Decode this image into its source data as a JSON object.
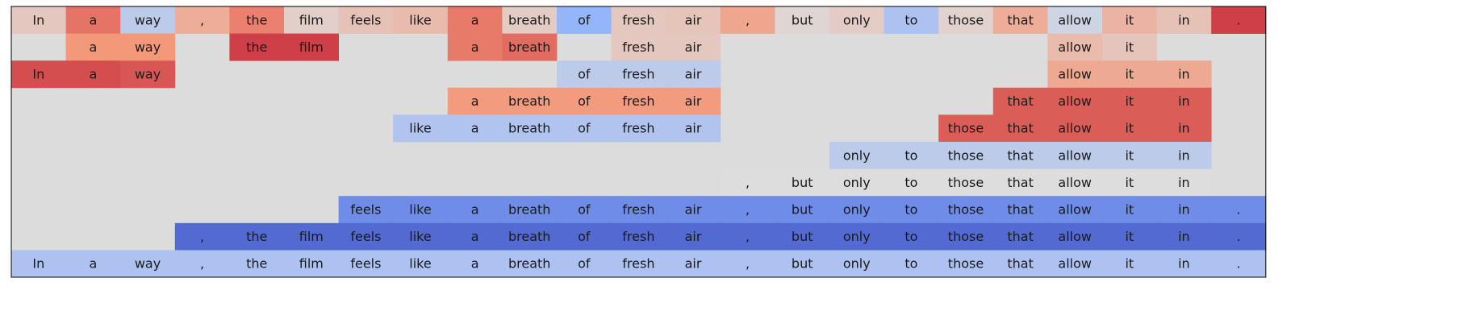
{
  "chart_data": {
    "type": "heatmap",
    "title": "",
    "xlabel": "",
    "ylabel": "",
    "grid": false,
    "tokens": [
      "In",
      "a",
      "way",
      ",",
      "the",
      "film",
      "feels",
      "like",
      "a",
      "breath",
      "of",
      "fresh",
      "air",
      ",",
      "but",
      "only",
      "to",
      "those",
      "that",
      "allow",
      "it",
      "in",
      "."
    ],
    "value_range": [
      -1,
      1
    ],
    "colormap": "coolwarm",
    "background_color": "#dcdcdc",
    "rows": [
      {
        "cells": [
          {
            "col": 0,
            "value": 0.15
          },
          {
            "col": 1,
            "value": 0.62
          },
          {
            "col": 2,
            "value": -0.2
          },
          {
            "col": 3,
            "value": 0.35
          },
          {
            "col": 4,
            "value": 0.58
          },
          {
            "col": 5,
            "value": 0.1
          },
          {
            "col": 6,
            "value": 0.2
          },
          {
            "col": 7,
            "value": 0.25
          },
          {
            "col": 8,
            "value": 0.6
          },
          {
            "col": 9,
            "value": 0.12
          },
          {
            "col": 10,
            "value": -0.45
          },
          {
            "col": 11,
            "value": 0.15
          },
          {
            "col": 12,
            "value": 0.18
          },
          {
            "col": 13,
            "value": 0.4
          },
          {
            "col": 14,
            "value": 0.05
          },
          {
            "col": 15,
            "value": 0.12
          },
          {
            "col": 16,
            "value": -0.3
          },
          {
            "col": 17,
            "value": 0.08
          },
          {
            "col": 18,
            "value": 0.35
          },
          {
            "col": 19,
            "value": -0.1
          },
          {
            "col": 20,
            "value": 0.3
          },
          {
            "col": 21,
            "value": 0.2
          },
          {
            "col": 22,
            "value": 0.8
          }
        ]
      },
      {
        "cells": [
          {
            "col": 1,
            "value": 0.5
          },
          {
            "col": 2,
            "value": 0.5
          },
          {
            "col": 4,
            "value": 0.8
          },
          {
            "col": 5,
            "value": 0.8
          },
          {
            "col": 8,
            "value": 0.6
          },
          {
            "col": 9,
            "value": 0.65
          },
          {
            "col": 11,
            "value": 0.15
          },
          {
            "col": 12,
            "value": 0.15
          },
          {
            "col": 19,
            "value": 0.25
          },
          {
            "col": 20,
            "value": 0.18
          }
        ]
      },
      {
        "cells": [
          {
            "col": 0,
            "value": 0.75
          },
          {
            "col": 1,
            "value": 0.75
          },
          {
            "col": 2,
            "value": 0.72
          },
          {
            "col": 10,
            "value": -0.2
          },
          {
            "col": 11,
            "value": -0.2
          },
          {
            "col": 12,
            "value": -0.2
          },
          {
            "col": 19,
            "value": 0.38
          },
          {
            "col": 20,
            "value": 0.38
          },
          {
            "col": 21,
            "value": 0.38
          }
        ]
      },
      {
        "cells": [
          {
            "col": 8,
            "value": 0.48
          },
          {
            "col": 9,
            "value": 0.48
          },
          {
            "col": 10,
            "value": 0.48
          },
          {
            "col": 11,
            "value": 0.48
          },
          {
            "col": 12,
            "value": 0.48
          },
          {
            "col": 18,
            "value": 0.7
          },
          {
            "col": 19,
            "value": 0.7
          },
          {
            "col": 20,
            "value": 0.7
          },
          {
            "col": 21,
            "value": 0.7
          }
        ]
      },
      {
        "cells": [
          {
            "col": 7,
            "value": -0.28
          },
          {
            "col": 8,
            "value": -0.28
          },
          {
            "col": 9,
            "value": -0.28
          },
          {
            "col": 10,
            "value": -0.28
          },
          {
            "col": 11,
            "value": -0.28
          },
          {
            "col": 12,
            "value": -0.28
          },
          {
            "col": 17,
            "value": 0.7
          },
          {
            "col": 18,
            "value": 0.7
          },
          {
            "col": 19,
            "value": 0.7
          },
          {
            "col": 20,
            "value": 0.7
          },
          {
            "col": 21,
            "value": 0.7
          }
        ]
      },
      {
        "cells": [
          {
            "col": 15,
            "value": -0.2
          },
          {
            "col": 16,
            "value": -0.2
          },
          {
            "col": 17,
            "value": -0.2
          },
          {
            "col": 18,
            "value": -0.2
          },
          {
            "col": 19,
            "value": -0.2
          },
          {
            "col": 20,
            "value": -0.2
          },
          {
            "col": 21,
            "value": -0.2
          }
        ]
      },
      {
        "cells": [
          {
            "col": 13,
            "value": 0.0
          },
          {
            "col": 14,
            "value": 0.0
          },
          {
            "col": 15,
            "value": 0.0
          },
          {
            "col": 16,
            "value": 0.0
          },
          {
            "col": 17,
            "value": 0.0
          },
          {
            "col": 18,
            "value": 0.0
          },
          {
            "col": 19,
            "value": 0.0
          },
          {
            "col": 20,
            "value": 0.0
          },
          {
            "col": 21,
            "value": 0.0
          }
        ]
      },
      {
        "cells": [
          {
            "col": 6,
            "value": -0.68
          },
          {
            "col": 7,
            "value": -0.68
          },
          {
            "col": 8,
            "value": -0.68
          },
          {
            "col": 9,
            "value": -0.68
          },
          {
            "col": 10,
            "value": -0.68
          },
          {
            "col": 11,
            "value": -0.68
          },
          {
            "col": 12,
            "value": -0.68
          },
          {
            "col": 13,
            "value": -0.68
          },
          {
            "col": 14,
            "value": -0.68
          },
          {
            "col": 15,
            "value": -0.68
          },
          {
            "col": 16,
            "value": -0.68
          },
          {
            "col": 17,
            "value": -0.68
          },
          {
            "col": 18,
            "value": -0.68
          },
          {
            "col": 19,
            "value": -0.68
          },
          {
            "col": 20,
            "value": -0.68
          },
          {
            "col": 21,
            "value": -0.68
          },
          {
            "col": 22,
            "value": -0.68
          }
        ]
      },
      {
        "cells": [
          {
            "col": 3,
            "value": -0.85
          },
          {
            "col": 4,
            "value": -0.85
          },
          {
            "col": 5,
            "value": -0.85
          },
          {
            "col": 6,
            "value": -0.85
          },
          {
            "col": 7,
            "value": -0.85
          },
          {
            "col": 8,
            "value": -0.85
          },
          {
            "col": 9,
            "value": -0.85
          },
          {
            "col": 10,
            "value": -0.85
          },
          {
            "col": 11,
            "value": -0.85
          },
          {
            "col": 12,
            "value": -0.85
          },
          {
            "col": 13,
            "value": -0.85
          },
          {
            "col": 14,
            "value": -0.85
          },
          {
            "col": 15,
            "value": -0.85
          },
          {
            "col": 16,
            "value": -0.85
          },
          {
            "col": 17,
            "value": -0.85
          },
          {
            "col": 18,
            "value": -0.85
          },
          {
            "col": 19,
            "value": -0.85
          },
          {
            "col": 20,
            "value": -0.85
          },
          {
            "col": 21,
            "value": -0.85
          },
          {
            "col": 22,
            "value": -0.85
          }
        ]
      },
      {
        "cells": [
          {
            "col": 0,
            "value": -0.3
          },
          {
            "col": 1,
            "value": -0.3
          },
          {
            "col": 2,
            "value": -0.3
          },
          {
            "col": 3,
            "value": -0.3
          },
          {
            "col": 4,
            "value": -0.3
          },
          {
            "col": 5,
            "value": -0.3
          },
          {
            "col": 6,
            "value": -0.3
          },
          {
            "col": 7,
            "value": -0.3
          },
          {
            "col": 8,
            "value": -0.3
          },
          {
            "col": 9,
            "value": -0.3
          },
          {
            "col": 10,
            "value": -0.3
          },
          {
            "col": 11,
            "value": -0.3
          },
          {
            "col": 12,
            "value": -0.3
          },
          {
            "col": 13,
            "value": -0.3
          },
          {
            "col": 14,
            "value": -0.3
          },
          {
            "col": 15,
            "value": -0.3
          },
          {
            "col": 16,
            "value": -0.3
          },
          {
            "col": 17,
            "value": -0.3
          },
          {
            "col": 18,
            "value": -0.3
          },
          {
            "col": 19,
            "value": -0.3
          },
          {
            "col": 20,
            "value": -0.3
          },
          {
            "col": 21,
            "value": -0.3
          },
          {
            "col": 22,
            "value": -0.3
          }
        ]
      }
    ]
  }
}
